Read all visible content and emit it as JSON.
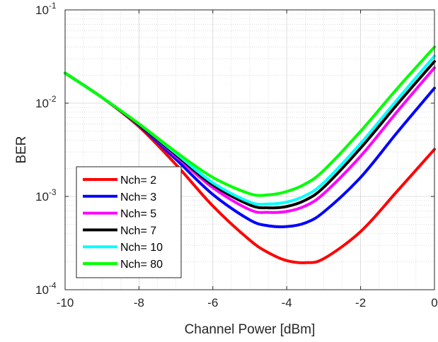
{
  "chart_data": {
    "type": "line",
    "title": "",
    "xlabel": "Channel Power [dBm]",
    "ylabel": "BER",
    "xlim": [
      -10,
      0
    ],
    "ylim": [
      0.0001,
      0.1
    ],
    "yscale": "log",
    "grid": true,
    "minor_grid": true,
    "legend_position": "bottom-left",
    "x_ticks": [
      -10,
      -8,
      -6,
      -4,
      -2,
      0
    ],
    "x_tick_labels": [
      "-10",
      "-8",
      "-6",
      "-4",
      "-2",
      "0"
    ],
    "y_ticks": [
      0.0001,
      0.001,
      0.01,
      0.1
    ],
    "y_tick_base": [
      "10",
      "10",
      "10",
      "10"
    ],
    "y_tick_exp": [
      "-4",
      "-3",
      "-2",
      "-1"
    ],
    "x": [
      -10,
      -9,
      -8,
      -7,
      -6,
      -5,
      -4.5,
      -4,
      -3.5,
      -3,
      -2,
      -1,
      0
    ],
    "series": [
      {
        "name": "Nch= 2",
        "color": "#ff0000",
        "values": [
          0.021,
          0.0115,
          0.0056,
          0.0022,
          0.00079,
          0.00034,
          0.00025,
          0.000205,
          0.000195,
          0.000215,
          0.00042,
          0.00115,
          0.0032
        ]
      },
      {
        "name": "Nch= 3",
        "color": "#0000ff",
        "values": [
          0.021,
          0.0115,
          0.0058,
          0.0025,
          0.00105,
          0.00056,
          0.000485,
          0.000475,
          0.00052,
          0.00068,
          0.0016,
          0.0049,
          0.0145
        ]
      },
      {
        "name": "Nch= 5",
        "color": "#ff00ff",
        "values": [
          0.021,
          0.0115,
          0.0059,
          0.0027,
          0.00124,
          0.00072,
          0.000675,
          0.00069,
          0.00079,
          0.00107,
          0.0027,
          0.0082,
          0.024
        ]
      },
      {
        "name": "Nch= 7",
        "color": "#000000",
        "values": [
          0.021,
          0.0115,
          0.0059,
          0.0028,
          0.00133,
          0.00081,
          0.000755,
          0.00078,
          0.00091,
          0.00125,
          0.0033,
          0.0098,
          0.028
        ]
      },
      {
        "name": "Nch= 10",
        "color": "#00ffff",
        "values": [
          0.021,
          0.0115,
          0.006,
          0.0029,
          0.0014,
          0.00087,
          0.00083,
          0.00087,
          0.00102,
          0.0014,
          0.0037,
          0.011,
          0.032
        ]
      },
      {
        "name": "Nch= 80",
        "color": "#00ff00",
        "values": [
          0.021,
          0.0115,
          0.006,
          0.003,
          0.0016,
          0.00107,
          0.00104,
          0.00113,
          0.00136,
          0.0019,
          0.005,
          0.0145,
          0.04
        ]
      }
    ]
  }
}
